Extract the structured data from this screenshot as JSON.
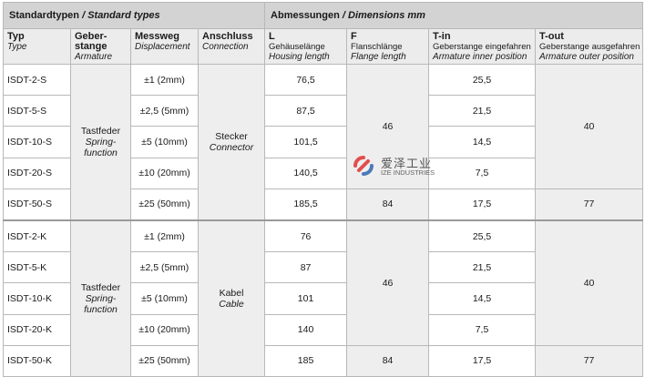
{
  "header": {
    "standard_types_de": "Standardtypen",
    "standard_types_sep": " / ",
    "standard_types_en": "Standard types",
    "dimensions_de": "Abmessungen",
    "dimensions_sep": " / ",
    "dimensions_en": "Dimensions mm"
  },
  "columns": [
    {
      "title": "Typ",
      "subtitle": "Type",
      "extra": ""
    },
    {
      "title": "Geber-",
      "subtitle": "Armature",
      "extra": "stange"
    },
    {
      "title": "Messweg",
      "subtitle": "Displacement",
      "extra": ""
    },
    {
      "title": "Anschluss",
      "subtitle": "Connection",
      "extra": ""
    },
    {
      "title": "L",
      "subtitle": "Housing length",
      "extra": "Gehäuselänge"
    },
    {
      "title": "F",
      "subtitle": "Flange length",
      "extra": "Flanschlänge"
    },
    {
      "title": "T-in",
      "subtitle": "Armature inner position",
      "extra": "Geberstange eingefahren"
    },
    {
      "title": "T-out",
      "subtitle": "Armature outer position",
      "extra": "Geberstange ausgefahren"
    }
  ],
  "groups": [
    {
      "armature_de": "Tastfeder",
      "armature_en1": "Spring-",
      "armature_en2": "function",
      "connection_de": "Stecker",
      "connection_en": "Connector",
      "f_main": "46",
      "f_last": "84",
      "tout_main": "40",
      "tout_last": "77",
      "rows": [
        {
          "type": "ISDT-2-S",
          "displacement": "±1 (2mm)",
          "L": "76,5",
          "Tin": "25,5"
        },
        {
          "type": "ISDT-5-S",
          "displacement": "±2,5 (5mm)",
          "L": "87,5",
          "Tin": "21,5"
        },
        {
          "type": "ISDT-10-S",
          "displacement": "±5 (10mm)",
          "L": "101,5",
          "Tin": "14,5"
        },
        {
          "type": "ISDT-20-S",
          "displacement": "±10 (20mm)",
          "L": "140,5",
          "Tin": "7,5"
        },
        {
          "type": "ISDT-50-S",
          "displacement": "±25 (50mm)",
          "L": "185,5",
          "Tin": "17,5"
        }
      ]
    },
    {
      "armature_de": "Tastfeder",
      "armature_en1": "Spring-",
      "armature_en2": "function",
      "connection_de": "Kabel",
      "connection_en": "Cable",
      "f_main": "46",
      "f_last": "84",
      "tout_main": "40",
      "tout_last": "77",
      "rows": [
        {
          "type": "ISDT-2-K",
          "displacement": "±1 (2mm)",
          "L": "76",
          "Tin": "25,5"
        },
        {
          "type": "ISDT-5-K",
          "displacement": "±2,5 (5mm)",
          "L": "87",
          "Tin": "21,5"
        },
        {
          "type": "ISDT-10-K",
          "displacement": "±5 (10mm)",
          "L": "101",
          "Tin": "14,5"
        },
        {
          "type": "ISDT-20-K",
          "displacement": "±10 (20mm)",
          "L": "140",
          "Tin": "7,5"
        },
        {
          "type": "ISDT-50-K",
          "displacement": "±25 (50mm)",
          "L": "185",
          "Tin": "17,5"
        }
      ]
    }
  ],
  "watermark": {
    "text_cn": "爱泽工业",
    "text_en": "IZE INDUSTRIES",
    "colors": {
      "red": "#e02020",
      "blue": "#1e5aa8"
    }
  }
}
